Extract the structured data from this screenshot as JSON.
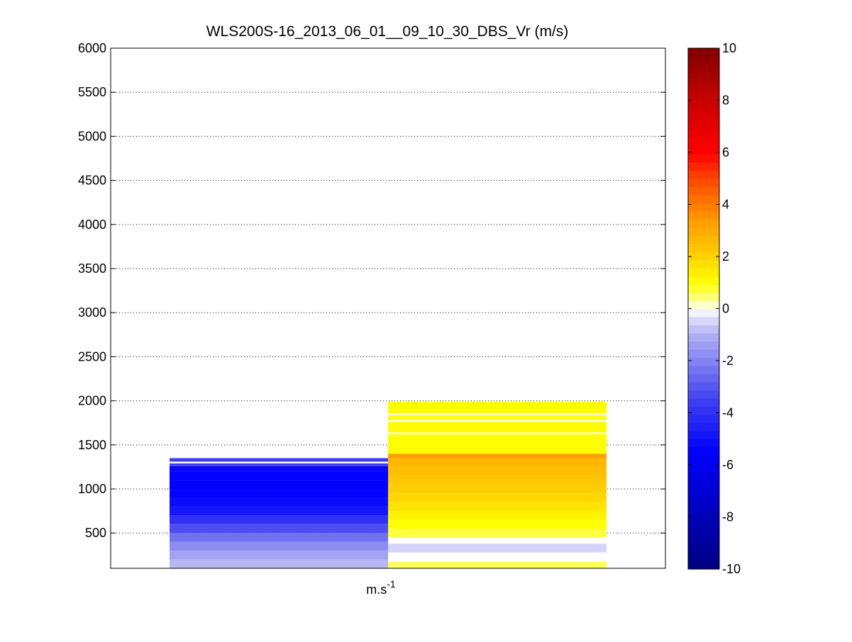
{
  "chart_data": {
    "type": "heatmap",
    "title": "WLS200S-16_2013_06_01__09_10_30_DBS_Vr (m/s)",
    "xlabel": "m.s",
    "xlabel_superscript": "-1",
    "ylabel": "",
    "ylim": [
      100,
      6000
    ],
    "yticks": [
      500,
      1000,
      1500,
      2000,
      2500,
      3000,
      3500,
      4000,
      4500,
      5000,
      5500,
      6000
    ],
    "grid": "horizontal dotted",
    "colorbar": {
      "range": [
        -10,
        10
      ],
      "ticks": [
        -10,
        -8,
        -6,
        -4,
        -2,
        0,
        2,
        4,
        6,
        8,
        10
      ],
      "colormap": "blue-white-yellow-red",
      "levels": 64
    },
    "columns": [
      {
        "cells": [
          {
            "y0": 100,
            "y1": 200,
            "v": -0.9
          },
          {
            "y0": 200,
            "y1": 300,
            "v": -1.3
          },
          {
            "y0": 300,
            "y1": 400,
            "v": -1.8
          },
          {
            "y0": 400,
            "y1": 500,
            "v": -2.4
          },
          {
            "y0": 500,
            "y1": 600,
            "v": -3.2
          },
          {
            "y0": 600,
            "y1": 700,
            "v": -4.0
          },
          {
            "y0": 700,
            "y1": 800,
            "v": -4.8
          },
          {
            "y0": 800,
            "y1": 900,
            "v": -5.2
          },
          {
            "y0": 900,
            "y1": 1000,
            "v": -5.4
          },
          {
            "y0": 1000,
            "y1": 1100,
            "v": -5.5
          },
          {
            "y0": 1100,
            "y1": 1200,
            "v": -5.5
          },
          {
            "y0": 1200,
            "y1": 1260,
            "v": -5.3
          },
          {
            "y0": 1260,
            "y1": 1290,
            "v": -3.5
          },
          {
            "y0": 1310,
            "y1": 1350,
            "v": -3.6
          }
        ]
      },
      {
        "cells": [
          {
            "y0": 100,
            "y1": 175,
            "v": 0.6
          },
          {
            "y0": 280,
            "y1": 380,
            "v": -0.5
          },
          {
            "y0": 450,
            "y1": 550,
            "v": 0.7
          },
          {
            "y0": 550,
            "y1": 650,
            "v": 1.0
          },
          {
            "y0": 650,
            "y1": 750,
            "v": 1.3
          },
          {
            "y0": 750,
            "y1": 850,
            "v": 1.6
          },
          {
            "y0": 850,
            "y1": 950,
            "v": 1.9
          },
          {
            "y0": 950,
            "y1": 1050,
            "v": 2.1
          },
          {
            "y0": 1050,
            "y1": 1150,
            "v": 2.3
          },
          {
            "y0": 1150,
            "y1": 1250,
            "v": 2.5
          },
          {
            "y0": 1250,
            "y1": 1350,
            "v": 2.7
          },
          {
            "y0": 1350,
            "y1": 1400,
            "v": 3.3
          },
          {
            "y0": 1400,
            "y1": 1620,
            "v": 1.0
          },
          {
            "y0": 1640,
            "y1": 1760,
            "v": 1.1
          },
          {
            "y0": 1780,
            "y1": 1840,
            "v": 0.9
          },
          {
            "y0": 1860,
            "y1": 1990,
            "v": 1.1
          }
        ]
      }
    ]
  }
}
